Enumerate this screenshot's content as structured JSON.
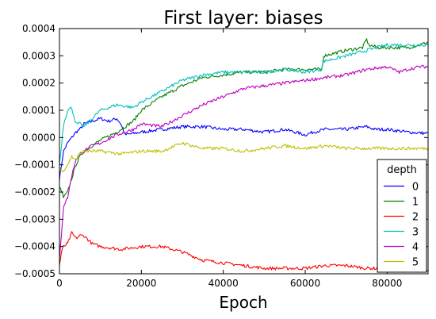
{
  "chart_data": {
    "type": "line",
    "title": "First layer: biases",
    "xlabel": "Epoch",
    "ylabel": "",
    "xlim": [
      0,
      90000
    ],
    "ylim": [
      -0.0005,
      0.0004
    ],
    "xticks": [
      0,
      20000,
      40000,
      60000,
      80000
    ],
    "xtick_labels": [
      "0",
      "20000",
      "40000",
      "60000",
      "80000"
    ],
    "yticks": [
      -0.0005,
      -0.0004,
      -0.0003,
      -0.0002,
      -0.0001,
      0.0,
      0.0001,
      0.0002,
      0.0003,
      0.0004
    ],
    "ytick_labels": [
      "−0.0005",
      "−0.0004",
      "−0.0003",
      "−0.0002",
      "−0.0001",
      "0.0000",
      "0.0001",
      "0.0002",
      "0.0003",
      "0.0004"
    ],
    "grid": false,
    "legend": {
      "title": "depth",
      "placement": "lower-right"
    },
    "series": [
      {
        "name": "0",
        "color": "#0000ff",
        "x": [
          0,
          500,
          1000,
          2000,
          3000,
          4000,
          5000,
          6000,
          8000,
          10000,
          12000,
          14000,
          15000,
          16000,
          20000,
          25000,
          30000,
          35000,
          40000,
          45000,
          50000,
          55000,
          60000,
          62000,
          65000,
          70000,
          75000,
          77000,
          80000,
          85000,
          90000
        ],
        "y": [
          -0.00015,
          -0.0001,
          -5e-05,
          -2e-05,
          0.0,
          2e-05,
          3e-05,
          5e-05,
          6e-05,
          7e-05,
          6e-05,
          7e-05,
          5e-05,
          1e-05,
          2e-05,
          3e-05,
          4e-05,
          4e-05,
          3e-05,
          3e-05,
          2e-05,
          3e-05,
          1e-05,
          2e-05,
          3e-05,
          3e-05,
          4e-05,
          3e-05,
          3e-05,
          2e-05,
          1.5e-05
        ]
      },
      {
        "name": "1",
        "color": "#008000",
        "x": [
          0,
          1000,
          2000,
          3000,
          4000,
          5000,
          6000,
          8000,
          10000,
          14000,
          18000,
          20000,
          25000,
          30000,
          35000,
          40000,
          45000,
          50000,
          55000,
          60000,
          64000,
          64500,
          70000,
          74000,
          75000,
          75500,
          78000,
          80000,
          82000,
          85000,
          88000,
          90000
        ],
        "y": [
          -0.00018,
          -0.00022,
          -0.0002,
          -0.00015,
          -0.0001,
          -7e-05,
          -5e-05,
          -3e-05,
          -1e-05,
          2e-05,
          6e-05,
          0.0001,
          0.00015,
          0.00019,
          0.00022,
          0.00023,
          0.00024,
          0.00024,
          0.00025,
          0.00025,
          0.00025,
          0.0003,
          0.00032,
          0.00033,
          0.00036,
          0.00034,
          0.00033,
          0.00033,
          0.00033,
          0.00033,
          0.00034,
          0.00035
        ]
      },
      {
        "name": "2",
        "color": "#ff0000",
        "x": [
          0,
          500,
          1000,
          2000,
          3000,
          4000,
          5000,
          6000,
          8000,
          10000,
          15000,
          20000,
          25000,
          30000,
          35000,
          40000,
          45000,
          50000,
          55000,
          60000,
          65000,
          70000,
          75000,
          80000,
          85000,
          90000
        ],
        "y": [
          -0.00047,
          -0.00042,
          -0.0004,
          -0.00039,
          -0.00035,
          -0.00037,
          -0.00036,
          -0.00036,
          -0.00039,
          -0.0004,
          -0.00041,
          -0.0004,
          -0.0004,
          -0.00042,
          -0.00045,
          -0.00046,
          -0.00047,
          -0.00048,
          -0.00048,
          -0.00048,
          -0.00047,
          -0.00047,
          -0.00048,
          -0.00048,
          -0.00049,
          -0.00049
        ]
      },
      {
        "name": "3",
        "color": "#00bfbf",
        "x": [
          0,
          1000,
          2000,
          3000,
          4000,
          5000,
          6000,
          8000,
          10000,
          14000,
          18000,
          20000,
          25000,
          30000,
          35000,
          40000,
          45000,
          50000,
          55000,
          60000,
          64000,
          64500,
          70000,
          75000,
          80000,
          85000,
          90000
        ],
        "y": [
          -0.0001,
          5e-05,
          0.0001,
          0.00011,
          5e-05,
          5e-05,
          4e-05,
          7e-05,
          0.0001,
          0.00012,
          0.00011,
          0.00013,
          0.00017,
          0.00021,
          0.00023,
          0.00024,
          0.00024,
          0.00024,
          0.00025,
          0.00024,
          0.00025,
          0.00028,
          0.0003,
          0.00032,
          0.00034,
          0.00034,
          0.00034
        ]
      },
      {
        "name": "4",
        "color": "#bf00bf",
        "x": [
          0,
          1000,
          2000,
          3000,
          4000,
          5000,
          6000,
          8000,
          10000,
          14000,
          18000,
          20000,
          25000,
          30000,
          35000,
          40000,
          45000,
          50000,
          55000,
          60000,
          65000,
          70000,
          75000,
          80000,
          83000,
          85000,
          88000,
          90000
        ],
        "y": [
          -0.00045,
          -0.00025,
          -0.00022,
          -0.00014,
          -8e-05,
          -6e-05,
          -5e-05,
          -3e-05,
          -2e-05,
          1e-05,
          3e-05,
          5e-05,
          4e-05,
          8e-05,
          0.00012,
          0.00015,
          0.00018,
          0.00019,
          0.0002,
          0.00021,
          0.00022,
          0.00023,
          0.00025,
          0.00026,
          0.00024,
          0.00025,
          0.00026,
          0.00026
        ]
      },
      {
        "name": "5",
        "color": "#bfbf00",
        "x": [
          0,
          1000,
          2000,
          3000,
          4000,
          5000,
          6000,
          8000,
          10000,
          15000,
          20000,
          25000,
          30000,
          35000,
          40000,
          45000,
          50000,
          55000,
          60000,
          65000,
          70000,
          75000,
          80000,
          85000,
          90000
        ],
        "y": [
          -0.00012,
          -0.00012,
          -0.0001,
          -7e-05,
          -8e-05,
          -6e-05,
          -5e-05,
          -5e-05,
          -5e-05,
          -6e-05,
          -5e-05,
          -5e-05,
          -2e-05,
          -4e-05,
          -4e-05,
          -5e-05,
          -4e-05,
          -3e-05,
          -4e-05,
          -3e-05,
          -4e-05,
          -4e-05,
          -4e-05,
          -4e-05,
          -4e-05
        ]
      }
    ]
  }
}
